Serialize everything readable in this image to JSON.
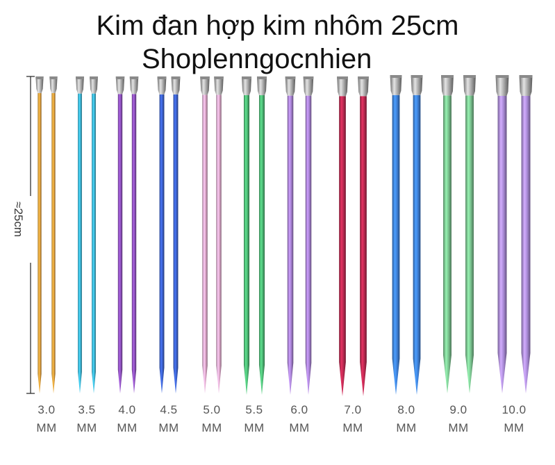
{
  "title_line1": "Kim đan hợp kim nhôm 25cm",
  "title_line2": "Shoplenngocnhien",
  "length_label": "≈25cm",
  "needles": [
    {
      "size": "3.0",
      "unit": "MM",
      "color": "#d89a3a"
    },
    {
      "size": "3.5",
      "unit": "MM",
      "color": "#3ab0cf"
    },
    {
      "size": "4.0",
      "unit": "MM",
      "color": "#8a4fb8"
    },
    {
      "size": "4.5",
      "unit": "MM",
      "color": "#3a5fc8"
    },
    {
      "size": "5.0",
      "unit": "MM",
      "color": "#d9a4c6"
    },
    {
      "size": "5.5",
      "unit": "MM",
      "color": "#4cb673"
    },
    {
      "size": "6.0",
      "unit": "MM",
      "color": "#a47fcf"
    },
    {
      "size": "7.0",
      "unit": "MM",
      "color": "#b8284f"
    },
    {
      "size": "8.0",
      "unit": "MM",
      "color": "#3d7fd6"
    },
    {
      "size": "9.0",
      "unit": "MM",
      "color": "#79c28e"
    },
    {
      "size": "10.0",
      "unit": "MM",
      "color": "#a98ad6"
    }
  ]
}
